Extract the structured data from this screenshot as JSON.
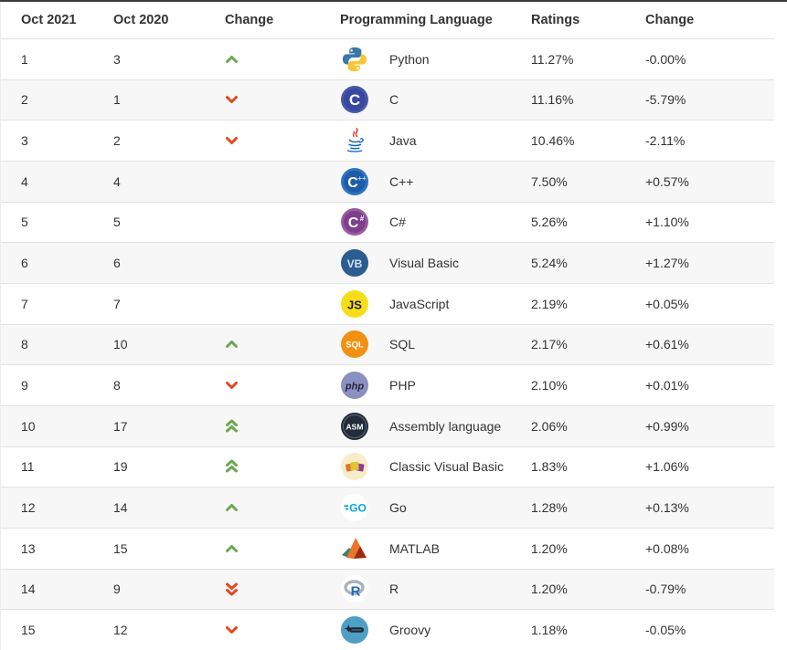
{
  "colors": {
    "arrow_up": "#6aa84f",
    "arrow_down": "#e2491d",
    "row_alt_bg": "#f7f7f8",
    "row_border": "#e2e2e2",
    "top_border": "#3c3c3c",
    "text": "#333333"
  },
  "table": {
    "headers": {
      "oct2021": "Oct 2021",
      "oct2020": "Oct 2020",
      "change": "Change",
      "language": "Programming Language",
      "ratings": "Ratings",
      "change_pct": "Change"
    },
    "rows": [
      {
        "oct2021": "1",
        "oct2020": "3",
        "change": "up",
        "icon": "python-icon",
        "language": "Python",
        "ratings": "11.27%",
        "change_pct": "-0.00%"
      },
      {
        "oct2021": "2",
        "oct2020": "1",
        "change": "down",
        "icon": "c-icon",
        "language": "C",
        "ratings": "11.16%",
        "change_pct": "-5.79%"
      },
      {
        "oct2021": "3",
        "oct2020": "2",
        "change": "down",
        "icon": "java-icon",
        "language": "Java",
        "ratings": "10.46%",
        "change_pct": "-2.11%"
      },
      {
        "oct2021": "4",
        "oct2020": "4",
        "change": "none",
        "icon": "cpp-icon",
        "language": "C++",
        "ratings": "7.50%",
        "change_pct": "+0.57%"
      },
      {
        "oct2021": "5",
        "oct2020": "5",
        "change": "none",
        "icon": "csharp-icon",
        "language": "C#",
        "ratings": "5.26%",
        "change_pct": "+1.10%"
      },
      {
        "oct2021": "6",
        "oct2020": "6",
        "change": "none",
        "icon": "visual-basic-icon",
        "language": "Visual Basic",
        "ratings": "5.24%",
        "change_pct": "+1.27%"
      },
      {
        "oct2021": "7",
        "oct2020": "7",
        "change": "none",
        "icon": "javascript-icon",
        "language": "JavaScript",
        "ratings": "2.19%",
        "change_pct": "+0.05%"
      },
      {
        "oct2021": "8",
        "oct2020": "10",
        "change": "up",
        "icon": "sql-icon",
        "language": "SQL",
        "ratings": "2.17%",
        "change_pct": "+0.61%"
      },
      {
        "oct2021": "9",
        "oct2020": "8",
        "change": "down",
        "icon": "php-icon",
        "language": "PHP",
        "ratings": "2.10%",
        "change_pct": "+0.01%"
      },
      {
        "oct2021": "10",
        "oct2020": "17",
        "change": "double-up",
        "icon": "assembly-icon",
        "language": "Assembly language",
        "ratings": "2.06%",
        "change_pct": "+0.99%"
      },
      {
        "oct2021": "11",
        "oct2020": "19",
        "change": "double-up",
        "icon": "classic-visual-basic-icon",
        "language": "Classic Visual Basic",
        "ratings": "1.83%",
        "change_pct": "+1.06%"
      },
      {
        "oct2021": "12",
        "oct2020": "14",
        "change": "up",
        "icon": "go-icon",
        "language": "Go",
        "ratings": "1.28%",
        "change_pct": "+0.13%"
      },
      {
        "oct2021": "13",
        "oct2020": "15",
        "change": "up",
        "icon": "matlab-icon",
        "language": "MATLAB",
        "ratings": "1.20%",
        "change_pct": "+0.08%"
      },
      {
        "oct2021": "14",
        "oct2020": "9",
        "change": "double-down",
        "icon": "r-icon",
        "language": "R",
        "ratings": "1.20%",
        "change_pct": "-0.79%"
      },
      {
        "oct2021": "15",
        "oct2020": "12",
        "change": "down",
        "icon": "groovy-icon",
        "language": "Groovy",
        "ratings": "1.18%",
        "change_pct": "-0.05%"
      }
    ]
  }
}
